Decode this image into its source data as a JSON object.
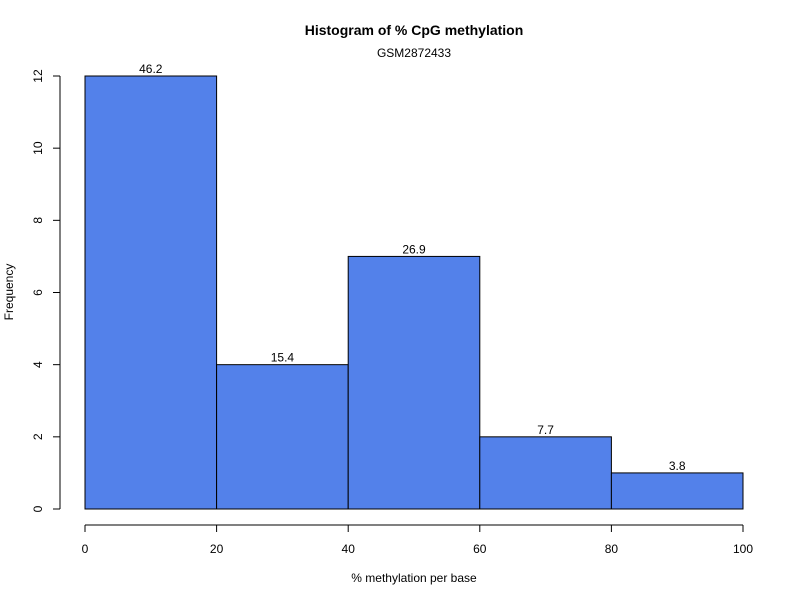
{
  "chart_data": {
    "type": "bar",
    "title": "Histogram of % CpG methylation",
    "subtitle": "GSM2872433",
    "xlabel": "% methylation per base",
    "ylabel": "Frequency",
    "bins": [
      {
        "x0": 0,
        "x1": 20,
        "count": 12,
        "label": "46.2"
      },
      {
        "x0": 20,
        "x1": 40,
        "count": 4,
        "label": "15.4"
      },
      {
        "x0": 40,
        "x1": 60,
        "count": 7,
        "label": "26.9"
      },
      {
        "x0": 60,
        "x1": 80,
        "count": 2,
        "label": "7.7"
      },
      {
        "x0": 80,
        "x1": 100,
        "count": 1,
        "label": "3.8"
      }
    ],
    "xlim": [
      0,
      100
    ],
    "ylim": [
      0,
      12
    ],
    "xticks": [
      0,
      20,
      40,
      60,
      80,
      100
    ],
    "yticks": [
      0,
      2,
      4,
      6,
      8,
      10,
      12
    ],
    "bar_color": "#5381EA",
    "grid": false,
    "legend": "none"
  }
}
